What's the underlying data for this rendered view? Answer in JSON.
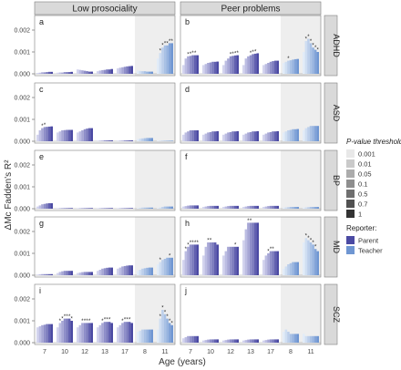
{
  "chart_data": {
    "type": "bar",
    "ylabel": "ΔMc Fadden's R²",
    "xlabel": "Age (years)",
    "columns": [
      "Low prosociality",
      "Peer problems"
    ],
    "rows": [
      "ADHD",
      "ASD",
      "BP",
      "MD",
      "SCZ"
    ],
    "panel_letters": [
      "a",
      "b",
      "c",
      "d",
      "e",
      "f",
      "g",
      "h",
      "i",
      "j"
    ],
    "ylim": [
      0,
      0.0025
    ],
    "yticks": [
      "0.000",
      "0.001",
      "0.002"
    ],
    "age_groups": [
      "7",
      "10",
      "12",
      "13",
      "17",
      "8",
      "11"
    ],
    "reporter_by_age_group": [
      "Parent",
      "Parent",
      "Parent",
      "Parent",
      "Parent",
      "Teacher",
      "Teacher"
    ],
    "thresholds": [
      "0.001",
      "0.01",
      "0.05",
      "0.1",
      "0.5",
      "0.7",
      "1"
    ],
    "significance_marker": "*",
    "panels": [
      {
        "letter": "a",
        "column": "Low prosociality",
        "row": "ADHD",
        "values": [
          [
            4e-05,
            5e-05,
            7e-05,
            7e-05,
            8e-05,
            9e-05,
            9e-05
          ],
          [
            5e-05,
            6e-05,
            6e-05,
            8e-05,
            8e-05,
            8e-05,
            9e-05
          ],
          [
            0.0002,
            0.00018,
            0.00016,
            0.00014,
            0.00012,
            0.0001,
            0.0001
          ],
          [
            0.00012,
            0.00015,
            0.00017,
            0.00018,
            0.0002,
            0.0002,
            0.00022
          ],
          [
            0.00025,
            0.00028,
            0.0003,
            0.00032,
            0.00034,
            0.00035,
            0.00036
          ],
          [
            0.00015,
            0.00013,
            0.00012,
            0.00012,
            0.0001,
            0.0001,
            0.0001
          ],
          [
            0.0007,
            0.00095,
            0.0012,
            0.0013,
            0.0013,
            0.0014,
            0.0014
          ]
        ],
        "stars": [
          [],
          [],
          [],
          [],
          [],
          [],
          [
            1,
            2,
            3,
            4,
            5,
            6
          ]
        ]
      },
      {
        "letter": "b",
        "column": "Peer problems",
        "row": "ADHD",
        "values": [
          [
            0.0004,
            0.0007,
            0.0008,
            0.00082,
            0.00085,
            0.00085,
            0.00085
          ],
          [
            0.0004,
            0.00045,
            0.0005,
            0.00052,
            0.00055,
            0.00055,
            0.00056
          ],
          [
            0.0004,
            0.0006,
            0.0007,
            0.0008,
            0.00082,
            0.00084,
            0.00085
          ],
          [
            0.0004,
            0.0007,
            0.0008,
            0.00085,
            0.0009,
            0.00092,
            0.00094
          ],
          [
            0.0004,
            0.00045,
            0.0005,
            0.00055,
            0.00058,
            0.0006,
            0.0006
          ],
          [
            0.0005,
            0.00055,
            0.0006,
            0.00062,
            0.00065,
            0.00067,
            0.00068
          ],
          [
            0.001,
            0.0015,
            0.0016,
            0.0014,
            0.0012,
            0.0011,
            0.001
          ]
        ],
        "stars": [
          [
            2,
            3,
            4,
            5
          ],
          [],
          [
            3,
            4,
            5,
            6
          ],
          [
            3,
            4,
            5
          ],
          [],
          [
            2
          ],
          [
            1,
            2,
            3,
            4,
            5,
            6
          ]
        ]
      },
      {
        "letter": "c",
        "column": "Low prosociality",
        "row": "ASD",
        "values": [
          [
            0.0003,
            0.0005,
            0.0006,
            0.00065,
            0.00066,
            0.00067,
            0.00068
          ],
          [
            0.0004,
            0.00045,
            0.0005,
            0.00051,
            0.00052,
            0.00052,
            0.00052
          ],
          [
            0.0004,
            0.00045,
            0.0005,
            0.00055,
            0.00058,
            0.0006,
            0.0006
          ],
          [
            2e-05,
            3e-05,
            3e-05,
            4e-05,
            4e-05,
            4e-05,
            4e-05
          ],
          [
            2e-05,
            3e-05,
            3e-05,
            4e-05,
            4e-05,
            4e-05,
            4e-05
          ],
          [
            0.0001,
            0.00012,
            0.00013,
            0.00014,
            0.00015,
            0.00015,
            0.00015
          ],
          [
            1e-05,
            1e-05,
            2e-05,
            2e-05,
            2e-05,
            2e-05,
            2e-05
          ]
        ],
        "stars": [
          [
            2,
            3
          ],
          [],
          [],
          [],
          [],
          [],
          []
        ]
      },
      {
        "letter": "d",
        "column": "Peer problems",
        "row": "ASD",
        "values": [
          [
            0.0003,
            0.0004,
            0.00045,
            0.0005,
            0.0005,
            0.0005,
            0.0005
          ],
          [
            0.0003,
            0.00035,
            0.0004,
            0.00042,
            0.00045,
            0.00045,
            0.00046
          ],
          [
            0.0003,
            0.00035,
            0.0004,
            0.00042,
            0.00045,
            0.00045,
            0.00046
          ],
          [
            0.0003,
            0.00035,
            0.0004,
            0.00042,
            0.00045,
            0.00045,
            0.00046
          ],
          [
            0.0003,
            0.00035,
            0.0004,
            0.00042,
            0.00045,
            0.00045,
            0.00046
          ],
          [
            0.0004,
            0.00045,
            0.0005,
            0.00052,
            0.00055,
            0.00055,
            0.00056
          ],
          [
            0.0005,
            0.0006,
            0.00065,
            0.0007,
            0.0007,
            0.0007,
            0.0007
          ]
        ],
        "stars": [
          [],
          [],
          [],
          [],
          [],
          [],
          []
        ]
      },
      {
        "letter": "e",
        "column": "Low prosociality",
        "row": "BP",
        "values": [
          [
            0.0001,
            0.00015,
            0.0002,
            0.00022,
            0.00024,
            0.00025,
            0.00025
          ],
          [
            2e-05,
            3e-05,
            3e-05,
            3e-05,
            3e-05,
            3e-05,
            3e-05
          ],
          [
            2e-05,
            3e-05,
            3e-05,
            3e-05,
            3e-05,
            3e-05,
            3e-05
          ],
          [
            2e-05,
            3e-05,
            3e-05,
            3e-05,
            3e-05,
            3e-05,
            3e-05
          ],
          [
            2e-05,
            3e-05,
            3e-05,
            3e-05,
            3e-05,
            3e-05,
            3e-05
          ],
          [
            3e-05,
            4e-05,
            5e-05,
            5e-05,
            5e-05,
            5e-05,
            5e-05
          ],
          [
            3e-05,
            5e-05,
            8e-05,
            0.0001,
            0.0001,
            0.0001,
            0.0001
          ]
        ],
        "stars": [
          [],
          [],
          [],
          [],
          [],
          [],
          []
        ]
      },
      {
        "letter": "f",
        "column": "Peer problems",
        "row": "BP",
        "values": [
          [
            0.0001,
            0.00012,
            0.00014,
            0.00015,
            0.00015,
            0.00015,
            0.00015
          ],
          [
            8e-05,
            0.0001,
            0.00012,
            0.00013,
            0.00013,
            0.00013,
            0.00013
          ],
          [
            8e-05,
            0.0001,
            0.00012,
            0.00013,
            0.00013,
            0.00013,
            0.00013
          ],
          [
            8e-05,
            0.0001,
            0.00012,
            0.00013,
            0.00013,
            0.00013,
            0.00013
          ],
          [
            8e-05,
            0.0001,
            0.00012,
            0.00013,
            0.00013,
            0.00013,
            0.00013
          ],
          [
            5e-05,
            6e-05,
            7e-05,
            8e-05,
            8e-05,
            8e-05,
            8e-05
          ],
          [
            5e-05,
            6e-05,
            7e-05,
            8e-05,
            8e-05,
            8e-05,
            8e-05
          ]
        ],
        "stars": [
          [],
          [],
          [],
          [],
          [],
          [],
          []
        ]
      },
      {
        "letter": "g",
        "column": "Low prosociality",
        "row": "MD",
        "values": [
          [
            3e-05,
            4e-05,
            5e-05,
            5e-05,
            5e-05,
            5e-05,
            5e-05
          ],
          [
            0.0001,
            0.00015,
            0.00018,
            0.0002,
            0.0002,
            0.0002,
            0.0002
          ],
          [
            0.0001,
            0.00012,
            0.00014,
            0.00015,
            0.00015,
            0.00015,
            0.00015
          ],
          [
            0.0002,
            0.00025,
            0.0003,
            0.00032,
            0.00034,
            0.00035,
            0.00035
          ],
          [
            0.0003,
            0.00035,
            0.0004,
            0.00042,
            0.00044,
            0.00045,
            0.00045
          ],
          [
            0.0002,
            0.00025,
            0.0003,
            0.00032,
            0.00034,
            0.00035,
            0.00035
          ],
          [
            0.0005,
            0.0006,
            0.0007,
            0.00075,
            0.0008,
            0.0008,
            0.0008
          ]
        ],
        "stars": [
          [],
          [],
          [],
          [],
          [],
          [],
          [
            1,
            5
          ]
        ]
      },
      {
        "letter": "h",
        "column": "Peer problems",
        "row": "MD",
        "values": [
          [
            0.0007,
            0.0011,
            0.0013,
            0.0014,
            0.0014,
            0.0014,
            0.0014
          ],
          [
            0.0009,
            0.0013,
            0.0015,
            0.0015,
            0.0015,
            0.0015,
            0.0014
          ],
          [
            0.0009,
            0.0011,
            0.0013,
            0.0013,
            0.0013,
            0.0013,
            0.0013
          ],
          [
            0.0016,
            0.0021,
            0.0024,
            0.0024,
            0.0024,
            0.0024,
            0.0024
          ],
          [
            0.0007,
            0.0009,
            0.001,
            0.0011,
            0.0011,
            0.0011,
            0.0011
          ],
          [
            0.0003,
            0.0004,
            0.0005,
            0.00055,
            0.0006,
            0.0006,
            0.0006
          ],
          [
            0.0015,
            0.0017,
            0.0016,
            0.0015,
            0.0014,
            0.0012,
            0.0011
          ]
        ],
        "stars": [
          [
            1,
            2,
            3,
            4,
            5,
            6
          ],
          [
            2,
            3
          ],
          [
            5
          ],
          [
            2,
            3
          ],
          [
            2,
            3,
            4
          ],
          [],
          [
            1,
            2,
            3,
            4,
            5
          ]
        ]
      },
      {
        "letter": "i",
        "column": "Low prosociality",
        "row": "SCZ",
        "values": [
          [
            0.0007,
            0.00075,
            0.0008,
            0.00082,
            0.00085,
            0.00085,
            0.00085
          ],
          [
            0.0007,
            0.0009,
            0.001,
            0.0011,
            0.0011,
            0.0011,
            0.001
          ],
          [
            0.0007,
            0.0008,
            0.0009,
            0.0009,
            0.0009,
            0.0009,
            0.0009
          ],
          [
            0.0007,
            0.0008,
            0.0009,
            0.00095,
            0.00095,
            0.00095,
            0.0009
          ],
          [
            0.0007,
            0.0008,
            0.0009,
            0.00095,
            0.00095,
            0.00095,
            0.0009
          ],
          [
            0.0005,
            0.00055,
            0.0006,
            0.0006,
            0.0006,
            0.0006,
            0.0006
          ],
          [
            0.0006,
            0.0011,
            0.0015,
            0.0013,
            0.0011,
            0.0009,
            0.0008
          ]
        ],
        "stars": [
          [],
          [
            1,
            2,
            3,
            4,
            5,
            6
          ],
          [
            2,
            3,
            4,
            5
          ],
          [
            2,
            3,
            4,
            5
          ],
          [
            2,
            3,
            4,
            5
          ],
          [],
          [
            1,
            2,
            3,
            4,
            5,
            6
          ]
        ]
      },
      {
        "letter": "j",
        "column": "Peer problems",
        "row": "SCZ",
        "values": [
          [
            0.0002,
            0.00025,
            0.0003,
            0.0003,
            0.0003,
            0.0003,
            0.0003
          ],
          [
            0.0001,
            0.00012,
            0.00014,
            0.00015,
            0.00015,
            0.00015,
            0.00015
          ],
          [
            0.0001,
            0.00012,
            0.00014,
            0.00015,
            0.00015,
            0.00015,
            0.00015
          ],
          [
            0.0001,
            0.00012,
            0.00014,
            0.00015,
            0.00015,
            0.00015,
            0.00015
          ],
          [
            0.0001,
            0.00012,
            0.00014,
            0.00015,
            0.00015,
            0.00015,
            0.00015
          ],
          [
            0.0005,
            0.0006,
            0.0005,
            0.0004,
            0.0004,
            0.0004,
            0.0004
          ],
          [
            0.0004,
            0.0003,
            0.0003,
            0.0003,
            0.0003,
            0.0003,
            0.0003
          ]
        ],
        "stars": [
          [],
          [],
          [],
          [],
          [],
          [],
          []
        ]
      }
    ],
    "legend": {
      "threshold_title": "P-value threshold:",
      "reporter_title": "Reporter:",
      "reporters": [
        "Parent",
        "Teacher"
      ],
      "placement": "right"
    },
    "colors": {
      "parent_light": "#d3d4ee",
      "parent_dark": "#4b4aa3",
      "teacher_light": "#e2ecf8",
      "teacher_dark": "#6f96d2",
      "strip_bg": "#d9d9d9",
      "teacher_band": "#eeeeee",
      "frame": "#7f7f7f"
    }
  }
}
